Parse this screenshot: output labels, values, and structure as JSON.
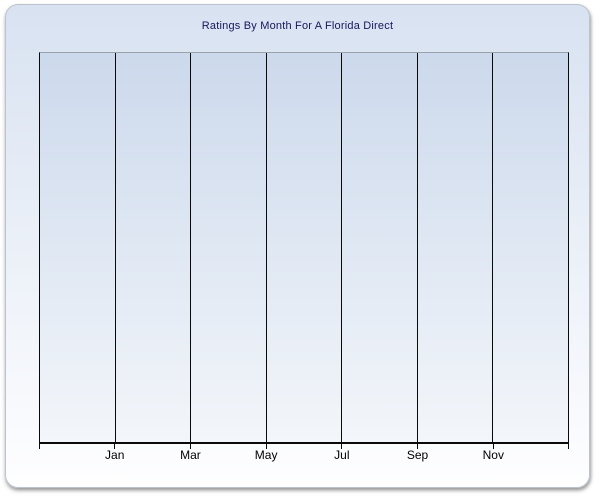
{
  "window": {
    "background": "#ffffff"
  },
  "chart_data": {
    "type": "line",
    "title": "Ratings By Month For A Florida Direct",
    "categories": [
      "Jan",
      "Mar",
      "May",
      "Jul",
      "Sep",
      "Nov"
    ],
    "series": [],
    "xlabel": "",
    "ylabel": "",
    "legend": "none",
    "grid": "vertical",
    "gridlines_including_edges": 8,
    "plot_area_empty": true
  },
  "colors": {
    "panel_top": "#d8e2f1",
    "panel_bottom": "#fefeff",
    "panel_border": "#bdc3cd",
    "plot_top": "#ccd9ec",
    "plot_bottom": "#f3f6fa",
    "plot_top_border": "#99a1ab",
    "axis": "#0a0a0a",
    "title_text": "#17175c",
    "label_text": "#000000"
  }
}
